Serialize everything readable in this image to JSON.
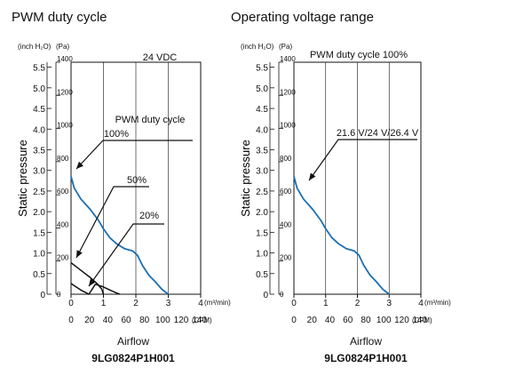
{
  "headings": {
    "left": "PWM duty cycle",
    "right": "Operating voltage range"
  },
  "captions": {
    "left_xlabel": "Airflow",
    "left_model": "9LG0824P1H001",
    "right_xlabel": "Airflow",
    "right_model": "9LG0824P1H001"
  },
  "chart_data": [
    {
      "type": "line",
      "title": "PWM duty cycle",
      "xlabel": "Airflow",
      "ylabel": "Static pressure",
      "x_units": [
        "(m³/min)",
        "(CFM)"
      ],
      "y_units": [
        "(inch H₂O)",
        "(Pa)"
      ],
      "xlim": [
        0,
        4
      ],
      "ylim": [
        0,
        1400
      ],
      "x_ticks_m3min": [
        "0",
        "1",
        "2",
        "3",
        "4"
      ],
      "x_ticks_cfm": [
        "0",
        "20",
        "40",
        "60",
        "80",
        "100",
        "120",
        "140"
      ],
      "y_ticks_pa": [
        "0",
        "200",
        "400",
        "600",
        "800",
        "1000",
        "1200",
        "1400"
      ],
      "y_ticks_inch": [
        "0",
        "0.5",
        "1.0",
        "1.5",
        "2.0",
        "2.5",
        "3.0",
        "3.5",
        "4.0",
        "4.5",
        "5.0",
        "5.5"
      ],
      "annotations": [
        "24 VDC",
        "PWM duty cycle",
        "100%",
        "50%",
        "20%"
      ],
      "grid": true,
      "series": [
        {
          "name": "100%",
          "color": "#1a6fb3",
          "x": [
            0.0,
            0.1,
            0.3,
            0.6,
            0.85,
            1.0,
            1.2,
            1.4,
            1.65,
            1.9,
            2.05,
            2.2,
            2.4,
            2.6,
            2.8,
            3.0
          ],
          "y": [
            710,
            640,
            575,
            510,
            445,
            395,
            340,
            305,
            275,
            262,
            235,
            175,
            115,
            75,
            30,
            0
          ]
        },
        {
          "name": "50%",
          "color": "#111111",
          "x": [
            0.0,
            0.2,
            0.4,
            0.6,
            0.8,
            0.95,
            1.0
          ],
          "y": [
            190,
            160,
            130,
            100,
            65,
            30,
            0
          ]
        },
        {
          "name": "20%",
          "color": "#111111",
          "x": [
            0.0,
            0.15,
            0.3,
            0.45,
            0.55,
            0.75,
            0.95,
            1.15,
            1.35,
            1.5
          ],
          "y": [
            65,
            45,
            25,
            10,
            0,
            60,
            48,
            30,
            12,
            0
          ]
        }
      ]
    },
    {
      "type": "line",
      "title": "Operating voltage range",
      "xlabel": "Airflow",
      "ylabel": "Static pressure",
      "x_units": [
        "(m³/min)",
        "(CFM)"
      ],
      "y_units": [
        "(inch H₂O)",
        "(Pa)"
      ],
      "xlim": [
        0,
        4
      ],
      "ylim": [
        0,
        1400
      ],
      "x_ticks_m3min": [
        "0",
        "1",
        "2",
        "3",
        "4"
      ],
      "x_ticks_cfm": [
        "0",
        "20",
        "40",
        "60",
        "80",
        "100",
        "120",
        "140"
      ],
      "y_ticks_pa": [
        "0",
        "200",
        "400",
        "600",
        "800",
        "1000",
        "1200",
        "1400"
      ],
      "y_ticks_inch": [
        "0",
        "0.5",
        "1.0",
        "1.5",
        "2.0",
        "2.5",
        "3.0",
        "3.5",
        "4.0",
        "4.5",
        "5.0",
        "5.5"
      ],
      "annotations": [
        "PWM duty cycle 100%",
        "21.6 V/24 V/26.4 V"
      ],
      "grid": true,
      "series": [
        {
          "name": "21.6 V/24 V/26.4 V",
          "color": "#1a6fb3",
          "x": [
            0.0,
            0.1,
            0.3,
            0.6,
            0.85,
            1.0,
            1.2,
            1.4,
            1.65,
            1.9,
            2.05,
            2.2,
            2.4,
            2.6,
            2.8,
            3.0
          ],
          "y": [
            710,
            640,
            575,
            510,
            445,
            395,
            340,
            305,
            275,
            262,
            235,
            175,
            115,
            75,
            30,
            0
          ]
        }
      ]
    }
  ]
}
